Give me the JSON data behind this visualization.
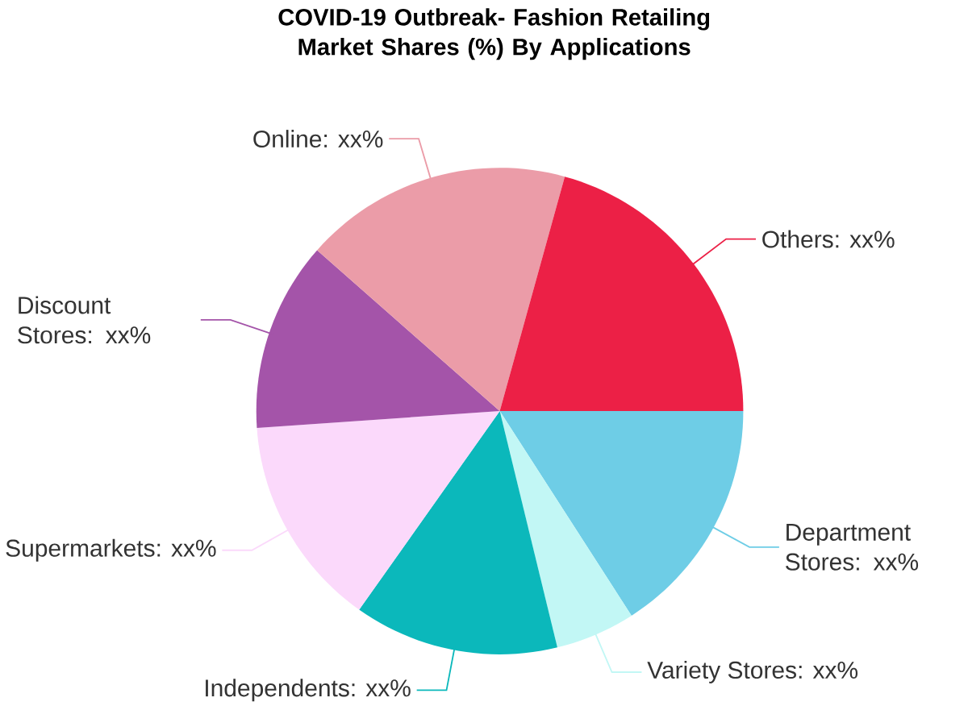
{
  "chart_data": {
    "type": "pie",
    "title": "COVID-19 Outbreak- Fashion Retailing Market Shares (%) By Applications",
    "categories": [
      "Department Stores: xx%",
      "Variety Stores: xx%",
      "Independents: xx%",
      "Supermarkets: xx%",
      "Discount Stores: xx%",
      "Online: xx%",
      "Others: xx%"
    ],
    "values": [
      15.9,
      5.3,
      13.6,
      14.1,
      12.6,
      17.8,
      20.7
    ],
    "colors": [
      "#6ecde6",
      "#c2f7f5",
      "#0bb8bb",
      "#fbd9fb",
      "#a454a9",
      "#eb9ca8",
      "#ec2046"
    ]
  }
}
